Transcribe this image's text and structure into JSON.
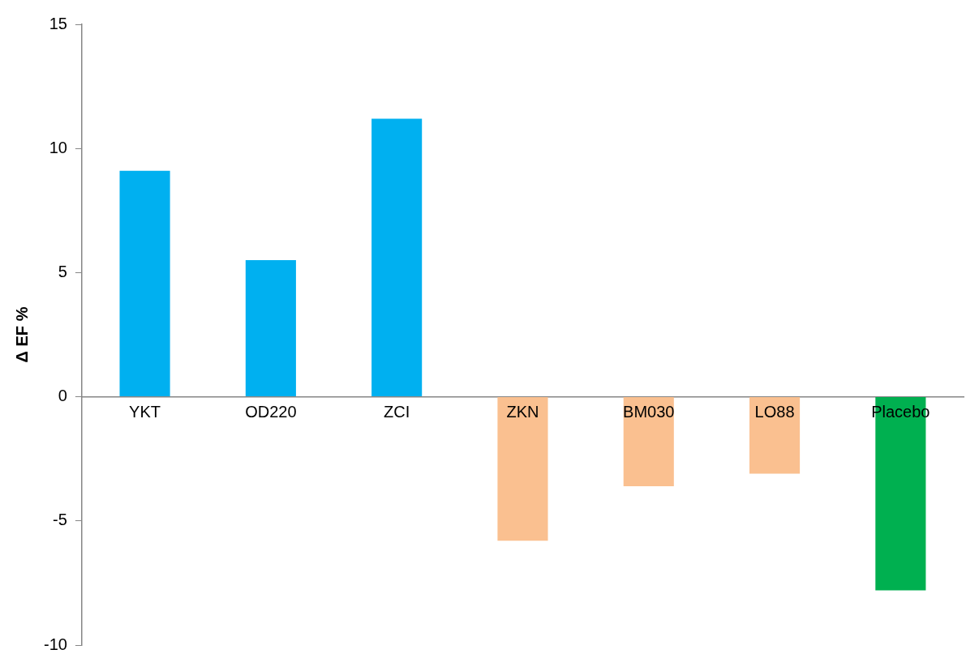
{
  "chart_data": {
    "type": "bar",
    "ylabel": "Δ EF %",
    "categories": [
      "YKT",
      "OD220",
      "ZCI",
      "ZKN",
      "BM030",
      "LO88",
      "Placebo"
    ],
    "values": [
      9.1,
      5.5,
      11.2,
      -5.8,
      -3.6,
      -3.1,
      -7.8
    ],
    "colors": [
      "#00b0f0",
      "#00b0f0",
      "#00b0f0",
      "#fac090",
      "#fac090",
      "#fac090",
      "#00b050"
    ],
    "ylim": [
      -10,
      15
    ],
    "yticks": [
      -10,
      -5,
      0,
      5,
      10,
      15
    ]
  }
}
